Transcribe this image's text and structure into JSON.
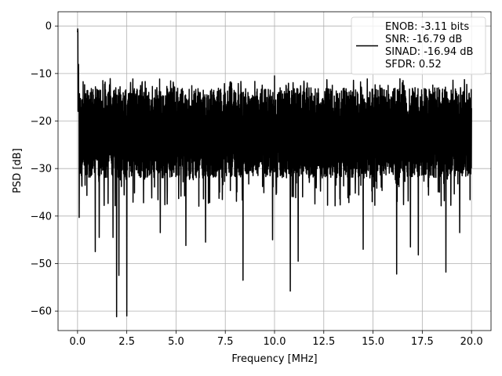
{
  "chart_data": {
    "type": "line",
    "title": "",
    "xlabel": "Frequency [MHz]",
    "ylabel": "PSD [dB]",
    "xlim": [
      -0.99,
      20.99
    ],
    "ylim": [
      -64.1,
      3.0
    ],
    "xticks": [
      0.0,
      2.5,
      5.0,
      7.5,
      10.0,
      12.5,
      15.0,
      17.5,
      20.0
    ],
    "xtick_labels": [
      "0.0",
      "2.5",
      "5.0",
      "7.5",
      "10.0",
      "12.5",
      "15.0",
      "17.5",
      "20.0"
    ],
    "yticks": [
      0,
      -10,
      -20,
      -30,
      -40,
      -50,
      -60
    ],
    "ytick_labels": [
      "0",
      "−10",
      "−20",
      "−30",
      "−40",
      "−50",
      "−60"
    ],
    "grid": true,
    "legend_position": "top-right",
    "legend_lines": [
      "ENOB: -3.11 bits",
      "SNR: -16.79 dB",
      "SINAD: -16.94 dB",
      "SFDR: 0.52"
    ],
    "series_color": "#000000",
    "series": {
      "x_range": [
        0.0,
        20.0
      ],
      "noise_mean_db": -23,
      "noise_top_db": -13,
      "noise_bottom_db": -32,
      "peak_db": 0.0,
      "spikes_up": [
        {
          "x": 10.0,
          "y": -10.5
        }
      ],
      "spikes_down": [
        {
          "x": 0.08,
          "y": -40.3
        },
        {
          "x": 0.9,
          "y": -47.5
        },
        {
          "x": 1.1,
          "y": -44.5
        },
        {
          "x": 1.8,
          "y": -44.5
        },
        {
          "x": 1.98,
          "y": -61.2
        },
        {
          "x": 2.1,
          "y": -52.5
        },
        {
          "x": 2.5,
          "y": -61.0
        },
        {
          "x": 4.2,
          "y": -43.5
        },
        {
          "x": 5.5,
          "y": -46.2
        },
        {
          "x": 6.5,
          "y": -45.5
        },
        {
          "x": 8.4,
          "y": -53.5
        },
        {
          "x": 9.9,
          "y": -45.0
        },
        {
          "x": 10.8,
          "y": -55.8
        },
        {
          "x": 11.2,
          "y": -49.5
        },
        {
          "x": 14.5,
          "y": -47.0
        },
        {
          "x": 16.2,
          "y": -52.2
        },
        {
          "x": 16.9,
          "y": -46.5
        },
        {
          "x": 17.3,
          "y": -48.2
        },
        {
          "x": 18.7,
          "y": -51.8
        },
        {
          "x": 19.4,
          "y": -43.5
        }
      ]
    }
  }
}
